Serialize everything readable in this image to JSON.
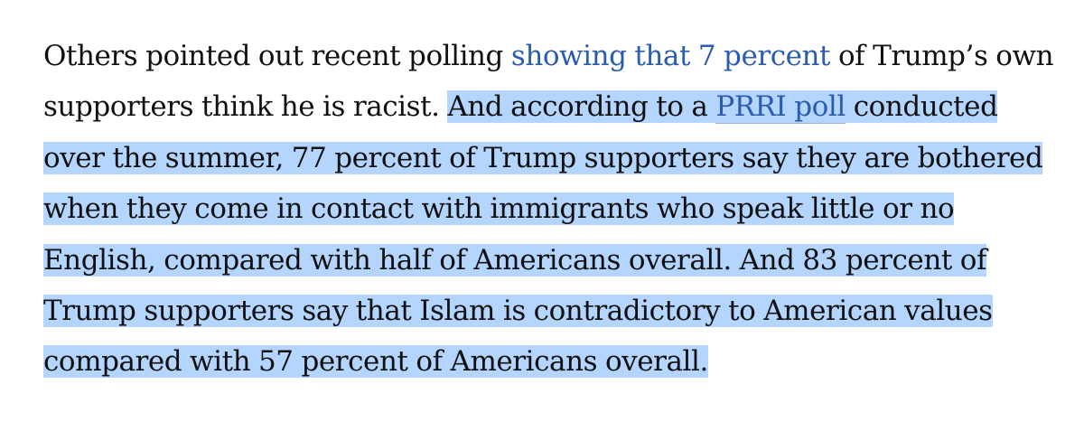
{
  "article": {
    "lead_text": "Others pointed out recent polling ",
    "link_1": "showing that 7 percent",
    "text_after_link_1": " of Trump’s own supporters think he is racist.",
    "selection_gap": " ",
    "selected_text_1": "And according to a ",
    "link_2": "PRRI poll",
    "selected_text_2": " conducted over the summer, 77 percent of Trump supporters say they are bothered when they come in contact with immigrants who speak little or no English, compared with half of Americans overall. And 83 percent of Trump supporters say that Islam is contradictory to American values compared with 57 percent of Americans overall."
  },
  "colors": {
    "link": "#2a5db0",
    "selection_highlight": "#b4d5fe",
    "body_text": "#111111"
  }
}
